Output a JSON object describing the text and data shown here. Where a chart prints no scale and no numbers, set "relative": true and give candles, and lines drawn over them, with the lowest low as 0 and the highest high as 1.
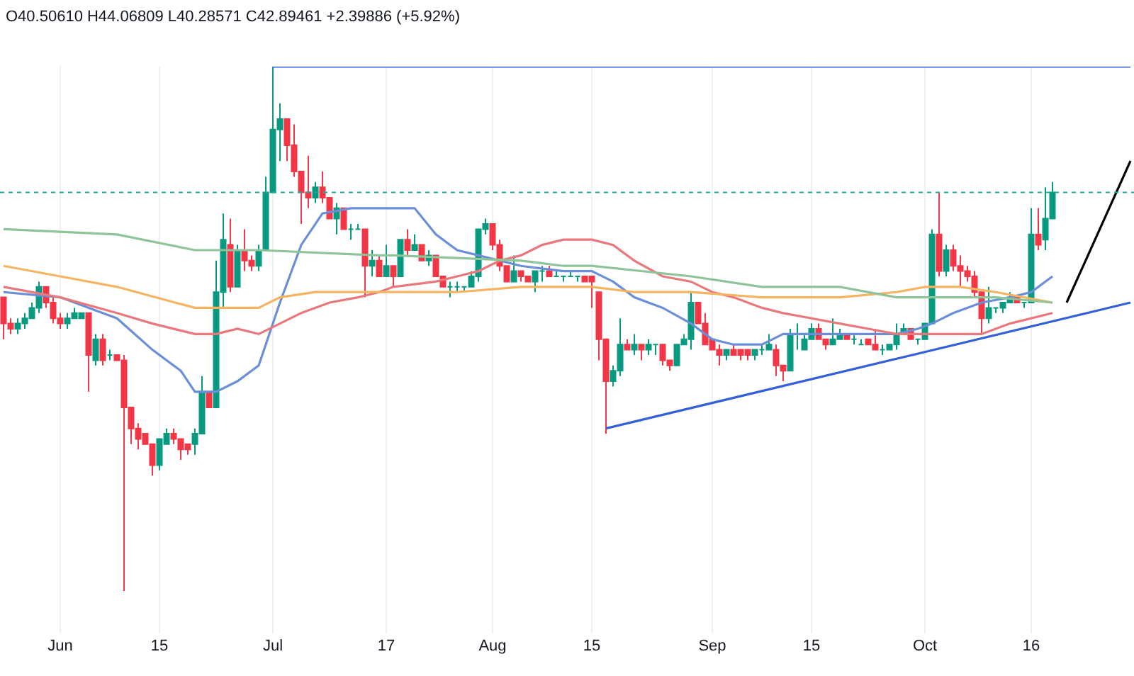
{
  "chart_data": {
    "type": "candlestick",
    "title": "O40.50610 H44.06809 L40.28571 C42.89461 +2.39886 (+5.92%)",
    "relative": true,
    "grid": "x",
    "categories": [
      null,
      null,
      null,
      null,
      null,
      null,
      null,
      null,
      "Jun",
      null,
      null,
      null,
      null,
      null,
      null,
      null,
      null,
      null,
      null,
      null,
      null,
      null,
      "15",
      null,
      null,
      null,
      null,
      null,
      null,
      null,
      null,
      null,
      null,
      null,
      null,
      null,
      null,
      null,
      "Jul",
      null,
      null,
      null,
      null,
      null,
      null,
      null,
      null,
      null,
      null,
      null,
      null,
      null,
      null,
      null,
      "17",
      null,
      null,
      null,
      null,
      null,
      null,
      null,
      null,
      null,
      null,
      null,
      null,
      null,
      null,
      "Aug",
      null,
      null,
      null,
      null,
      null,
      null,
      null,
      null,
      null,
      null,
      null,
      null,
      null,
      "15",
      null,
      null,
      null,
      null,
      null,
      null,
      null,
      null,
      null,
      null,
      null,
      null,
      null,
      null,
      null,
      null,
      "Sep",
      null,
      null,
      null,
      null,
      null,
      null,
      null,
      null,
      null,
      null,
      null,
      null,
      null,
      "15",
      null,
      null,
      null,
      null,
      null,
      null,
      null,
      null,
      null,
      null,
      null,
      null,
      null,
      null,
      null,
      "Oct",
      null,
      null,
      null,
      null,
      null,
      null,
      null,
      null,
      null,
      null,
      null,
      null,
      null,
      null,
      "16",
      null,
      null,
      null,
      null,
      null,
      null,
      null,
      null,
      null,
      null,
      null,
      null,
      null,
      null
    ],
    "ohlc": [
      [
        0.56,
        0.56,
        0.48,
        0.51
      ],
      [
        0.51,
        0.52,
        0.49,
        0.5
      ],
      [
        0.5,
        0.52,
        0.49,
        0.51
      ],
      [
        0.51,
        0.53,
        0.5,
        0.52
      ],
      [
        0.52,
        0.55,
        0.52,
        0.54
      ],
      [
        0.54,
        0.59,
        0.53,
        0.58
      ],
      [
        0.58,
        0.58,
        0.54,
        0.55
      ],
      [
        0.55,
        0.56,
        0.51,
        0.52
      ],
      [
        0.52,
        0.53,
        0.5,
        0.51
      ],
      [
        0.51,
        0.53,
        0.5,
        0.52
      ],
      [
        0.52,
        0.54,
        0.52,
        0.53
      ],
      [
        0.52,
        0.53,
        0.52,
        0.53
      ],
      [
        0.53,
        0.53,
        0.38,
        0.45
      ],
      [
        0.44,
        0.49,
        0.43,
        0.48
      ],
      [
        0.48,
        0.49,
        0.43,
        0.44
      ],
      [
        0.45,
        0.46,
        0.44,
        0.45
      ],
      [
        0.45,
        0.45,
        0.44,
        0.44
      ],
      [
        0.44,
        0.45,
        0.0,
        0.35
      ],
      [
        0.35,
        0.35,
        0.28,
        0.31
      ],
      [
        0.31,
        0.32,
        0.27,
        0.29
      ],
      [
        0.3,
        0.3,
        0.28,
        0.28
      ],
      [
        0.28,
        0.28,
        0.22,
        0.24
      ],
      [
        0.24,
        0.29,
        0.23,
        0.29
      ],
      [
        0.28,
        0.31,
        0.28,
        0.3
      ],
      [
        0.3,
        0.31,
        0.28,
        0.29
      ],
      [
        0.29,
        0.29,
        0.25,
        0.27
      ],
      [
        0.28,
        0.28,
        0.26,
        0.27
      ],
      [
        0.28,
        0.31,
        0.26,
        0.3
      ],
      [
        0.3,
        0.41,
        0.3,
        0.38
      ],
      [
        0.38,
        0.38,
        0.35,
        0.35
      ],
      [
        0.35,
        0.63,
        0.35,
        0.57
      ],
      [
        0.57,
        0.72,
        0.54,
        0.67
      ],
      [
        0.66,
        0.71,
        0.57,
        0.58
      ],
      [
        0.58,
        0.66,
        0.58,
        0.65
      ],
      [
        0.65,
        0.69,
        0.61,
        0.63
      ],
      [
        0.63,
        0.64,
        0.61,
        0.62
      ],
      [
        0.62,
        0.66,
        0.61,
        0.65
      ],
      [
        0.65,
        0.79,
        0.65,
        0.76
      ],
      [
        0.76,
        1.0,
        0.76,
        0.88
      ],
      [
        0.88,
        0.93,
        0.82,
        0.9
      ],
      [
        0.9,
        0.9,
        0.82,
        0.85
      ],
      [
        0.85,
        0.89,
        0.79,
        0.8
      ],
      [
        0.8,
        0.8,
        0.7,
        0.76
      ],
      [
        0.76,
        0.83,
        0.73,
        0.75
      ],
      [
        0.75,
        0.78,
        0.74,
        0.77
      ],
      [
        0.77,
        0.8,
        0.74,
        0.75
      ],
      [
        0.75,
        0.75,
        0.71,
        0.71
      ],
      [
        0.71,
        0.74,
        0.68,
        0.73
      ],
      [
        0.73,
        0.73,
        0.69,
        0.69
      ],
      [
        0.69,
        0.7,
        0.67,
        0.69
      ],
      [
        0.69,
        0.7,
        0.69,
        0.69
      ],
      [
        0.69,
        0.69,
        0.56,
        0.62
      ],
      [
        0.62,
        0.65,
        0.6,
        0.63
      ],
      [
        0.63,
        0.64,
        0.6,
        0.6
      ],
      [
        0.6,
        0.66,
        0.6,
        0.62
      ],
      [
        0.62,
        0.62,
        0.58,
        0.6
      ],
      [
        0.6,
        0.67,
        0.6,
        0.67
      ],
      [
        0.67,
        0.69,
        0.64,
        0.65
      ],
      [
        0.65,
        0.68,
        0.65,
        0.66
      ],
      [
        0.66,
        0.66,
        0.63,
        0.63
      ],
      [
        0.63,
        0.65,
        0.62,
        0.64
      ],
      [
        0.64,
        0.64,
        0.6,
        0.6
      ],
      [
        0.6,
        0.6,
        0.58,
        0.58
      ],
      [
        0.58,
        0.59,
        0.56,
        0.58
      ],
      [
        0.58,
        0.59,
        0.57,
        0.58
      ],
      [
        0.58,
        0.58,
        0.57,
        0.58
      ],
      [
        0.58,
        0.61,
        0.58,
        0.6
      ],
      [
        0.6,
        0.69,
        0.59,
        0.69
      ],
      [
        0.69,
        0.71,
        0.68,
        0.7
      ],
      [
        0.7,
        0.7,
        0.65,
        0.66
      ],
      [
        0.66,
        0.67,
        0.61,
        0.62
      ],
      [
        0.62,
        0.62,
        0.59,
        0.59
      ],
      [
        0.59,
        0.64,
        0.59,
        0.61
      ],
      [
        0.61,
        0.61,
        0.59,
        0.6
      ],
      [
        0.6,
        0.6,
        0.59,
        0.59
      ],
      [
        0.59,
        0.61,
        0.57,
        0.61
      ],
      [
        0.61,
        0.62,
        0.59,
        0.61
      ],
      [
        0.61,
        0.62,
        0.6,
        0.6
      ],
      [
        0.6,
        0.61,
        0.6,
        0.6
      ],
      [
        0.6,
        0.6,
        0.59,
        0.6
      ],
      [
        0.6,
        0.61,
        0.6,
        0.6
      ],
      [
        0.6,
        0.6,
        0.59,
        0.6
      ],
      [
        0.6,
        0.6,
        0.59,
        0.59
      ],
      [
        0.6,
        0.6,
        0.54,
        0.59
      ],
      [
        0.57,
        0.57,
        0.44,
        0.48
      ],
      [
        0.48,
        0.48,
        0.3,
        0.4
      ],
      [
        0.4,
        0.43,
        0.39,
        0.42
      ],
      [
        0.42,
        0.52,
        0.41,
        0.47
      ],
      [
        0.47,
        0.48,
        0.46,
        0.46
      ],
      [
        0.46,
        0.49,
        0.45,
        0.47
      ],
      [
        0.47,
        0.47,
        0.44,
        0.46
      ],
      [
        0.46,
        0.48,
        0.45,
        0.47
      ],
      [
        0.47,
        0.47,
        0.45,
        0.47
      ],
      [
        0.47,
        0.47,
        0.43,
        0.44
      ],
      [
        0.44,
        0.44,
        0.42,
        0.43
      ],
      [
        0.43,
        0.47,
        0.43,
        0.47
      ],
      [
        0.47,
        0.49,
        0.47,
        0.48
      ],
      [
        0.48,
        0.57,
        0.46,
        0.55
      ],
      [
        0.55,
        0.55,
        0.51,
        0.51
      ],
      [
        0.51,
        0.53,
        0.47,
        0.47
      ],
      [
        0.48,
        0.48,
        0.46,
        0.46
      ],
      [
        0.46,
        0.47,
        0.43,
        0.45
      ],
      [
        0.45,
        0.46,
        0.44,
        0.46
      ],
      [
        0.46,
        0.47,
        0.45,
        0.45
      ],
      [
        0.46,
        0.46,
        0.44,
        0.45
      ],
      [
        0.46,
        0.46,
        0.44,
        0.45
      ],
      [
        0.45,
        0.46,
        0.44,
        0.46
      ],
      [
        0.46,
        0.47,
        0.45,
        0.46
      ],
      [
        0.46,
        0.49,
        0.46,
        0.47
      ],
      [
        0.46,
        0.47,
        0.41,
        0.43
      ],
      [
        0.43,
        0.43,
        0.4,
        0.42
      ],
      [
        0.42,
        0.5,
        0.42,
        0.49
      ],
      [
        0.49,
        0.51,
        0.46,
        0.49
      ],
      [
        0.46,
        0.49,
        0.46,
        0.48
      ],
      [
        0.48,
        0.51,
        0.48,
        0.5
      ],
      [
        0.5,
        0.51,
        0.48,
        0.48
      ],
      [
        0.48,
        0.48,
        0.46,
        0.47
      ],
      [
        0.47,
        0.52,
        0.47,
        0.48
      ],
      [
        0.48,
        0.5,
        0.48,
        0.49
      ],
      [
        0.49,
        0.49,
        0.48,
        0.48
      ],
      [
        0.48,
        0.49,
        0.47,
        0.48
      ],
      [
        0.47,
        0.48,
        0.47,
        0.47
      ],
      [
        0.48,
        0.48,
        0.47,
        0.47
      ],
      [
        0.47,
        0.5,
        0.46,
        0.46
      ],
      [
        0.46,
        0.47,
        0.45,
        0.46
      ],
      [
        0.46,
        0.47,
        0.46,
        0.47
      ],
      [
        0.47,
        0.51,
        0.46,
        0.49
      ],
      [
        0.49,
        0.51,
        0.49,
        0.5
      ],
      [
        0.5,
        0.5,
        0.48,
        0.48
      ],
      [
        0.48,
        0.48,
        0.47,
        0.48
      ],
      [
        0.48,
        0.51,
        0.48,
        0.51
      ],
      [
        0.51,
        0.69,
        0.51,
        0.68
      ],
      [
        0.68,
        0.76,
        0.6,
        0.61
      ],
      [
        0.61,
        0.66,
        0.6,
        0.65
      ],
      [
        0.65,
        0.66,
        0.61,
        0.62
      ],
      [
        0.62,
        0.64,
        0.58,
        0.61
      ],
      [
        0.61,
        0.62,
        0.59,
        0.6
      ],
      [
        0.6,
        0.61,
        0.56,
        0.57
      ],
      [
        0.57,
        0.57,
        0.49,
        0.52
      ],
      [
        0.52,
        0.58,
        0.51,
        0.54
      ],
      [
        0.54,
        0.54,
        0.53,
        0.54
      ],
      [
        0.54,
        0.55,
        0.53,
        0.55
      ],
      [
        0.55,
        0.57,
        0.55,
        0.56
      ],
      [
        0.56,
        0.56,
        0.55,
        0.55
      ],
      [
        0.55,
        0.55,
        0.54,
        0.55
      ],
      [
        0.55,
        0.73,
        0.55,
        0.68
      ],
      [
        0.68,
        0.73,
        0.65,
        0.66
      ],
      [
        0.67,
        0.77,
        0.65,
        0.71
      ],
      [
        0.71,
        0.78,
        0.71,
        0.76
      ],
      null,
      null,
      null,
      null,
      null,
      null,
      null,
      null,
      null,
      null,
      null
    ],
    "series": [
      {
        "type": "line",
        "color": "#6a8fd8",
        "values": [
          0.57,
          null,
          null,
          null,
          null,
          null,
          null,
          null,
          0.56,
          null,
          null,
          null,
          null,
          null,
          null,
          null,
          0.52,
          null,
          null,
          null,
          null,
          0.46,
          null,
          null,
          null,
          0.42,
          null,
          0.38,
          null,
          null,
          0.38,
          null,
          null,
          0.4,
          null,
          null,
          0.43,
          null,
          null,
          0.55,
          null,
          null,
          0.66,
          null,
          null,
          0.72,
          null,
          null,
          null,
          0.73,
          null,
          null,
          null,
          0.73,
          null,
          0.73,
          null,
          null,
          0.73,
          null,
          null,
          0.68,
          null,
          null,
          0.65,
          null,
          null,
          0.64,
          null,
          null,
          0.63,
          null,
          null,
          0.62,
          null,
          null,
          null,
          null,
          null,
          0.61,
          null,
          null,
          null,
          0.61,
          null,
          null,
          0.59,
          null,
          null,
          0.56,
          null,
          null,
          null,
          0.54,
          null,
          null,
          null,
          0.51,
          null,
          null,
          0.48,
          null,
          null,
          0.47,
          null,
          null,
          null,
          0.47,
          null,
          null,
          0.49,
          null,
          null,
          null,
          0.49,
          null,
          null,
          null,
          0.49,
          null,
          null,
          null,
          0.49,
          null,
          null,
          null,
          0.49,
          null,
          null,
          0.5,
          null,
          0.51,
          null,
          null,
          0.53,
          null,
          null,
          null,
          0.55,
          null,
          null,
          null,
          0.56,
          null,
          null,
          0.57,
          null,
          null,
          0.6,
          null,
          null,
          null,
          null,
          null,
          null,
          null,
          null,
          null,
          null,
          null
        ]
      },
      {
        "type": "line",
        "color": "#e8787c",
        "values": [
          0.58,
          null,
          null,
          null,
          null,
          null,
          null,
          null,
          0.56,
          null,
          null,
          null,
          null,
          null,
          null,
          null,
          0.53,
          null,
          null,
          null,
          null,
          0.51,
          null,
          null,
          null,
          null,
          null,
          0.49,
          null,
          null,
          0.49,
          null,
          null,
          0.5,
          null,
          null,
          0.49,
          null,
          null,
          0.51,
          null,
          null,
          0.53,
          null,
          null,
          null,
          0.55,
          null,
          null,
          null,
          0.56,
          null,
          null,
          0.57,
          null,
          0.58,
          null,
          null,
          null,
          null,
          null,
          0.59,
          null,
          null,
          0.6,
          null,
          null,
          0.61,
          null,
          null,
          0.63,
          null,
          null,
          0.64,
          null,
          null,
          0.66,
          null,
          null,
          0.67,
          null,
          0.67,
          null,
          0.67,
          null,
          null,
          0.66,
          null,
          null,
          0.63,
          null,
          null,
          null,
          0.6,
          null,
          null,
          null,
          0.59,
          null,
          null,
          0.57,
          null,
          null,
          0.56,
          null,
          null,
          null,
          0.54,
          null,
          null,
          0.53,
          null,
          null,
          null,
          0.52,
          null,
          null,
          null,
          0.51,
          null,
          null,
          null,
          0.5,
          null,
          null,
          null,
          0.49,
          null,
          null,
          null,
          0.49,
          null,
          null,
          null,
          0.49,
          null,
          null,
          null,
          0.49,
          null,
          null,
          null,
          0.51,
          null,
          null,
          null,
          null,
          null,
          0.53,
          null,
          null,
          null,
          null,
          null,
          null,
          null,
          null,
          null,
          null,
          null
        ]
      },
      {
        "type": "line",
        "color": "#f5b461",
        "values": [
          0.62,
          null,
          null,
          null,
          null,
          null,
          null,
          null,
          0.6,
          null,
          null,
          null,
          null,
          null,
          null,
          null,
          0.58,
          null,
          null,
          null,
          null,
          null,
          null,
          null,
          null,
          null,
          null,
          0.54,
          null,
          null,
          0.54,
          null,
          null,
          null,
          null,
          null,
          0.54,
          null,
          null,
          0.56,
          null,
          null,
          null,
          null,
          0.57,
          null,
          null,
          null,
          null,
          null,
          null,
          null,
          null,
          0.57,
          null,
          null,
          null,
          null,
          null,
          null,
          null,
          null,
          null,
          null,
          0.57,
          null,
          null,
          null,
          null,
          null,
          null,
          null,
          null,
          0.58,
          null,
          null,
          null,
          null,
          null,
          0.58,
          null,
          null,
          null,
          0.58,
          null,
          null,
          null,
          null,
          null,
          0.57,
          null,
          null,
          null,
          null,
          null,
          null,
          null,
          0.57,
          null,
          null,
          null,
          null,
          null,
          null,
          null,
          null,
          null,
          0.56,
          null,
          null,
          0.56,
          null,
          null,
          null,
          null,
          null,
          null,
          null,
          0.56,
          null,
          null,
          null,
          null,
          null,
          null,
          null,
          0.57,
          null,
          null,
          null,
          0.58,
          null,
          null,
          null,
          null,
          0.58,
          null,
          null,
          null,
          null,
          0.57,
          null,
          null,
          null,
          null,
          null,
          null,
          null,
          0.55,
          null,
          null,
          null,
          null,
          null,
          null,
          null,
          null,
          null,
          null,
          null
        ]
      },
      {
        "type": "line",
        "color": "#8fc49a",
        "values": [
          0.69,
          null,
          null,
          null,
          null,
          null,
          null,
          null,
          null,
          null,
          null,
          null,
          null,
          null,
          null,
          null,
          0.68,
          null,
          null,
          null,
          null,
          null,
          null,
          null,
          null,
          null,
          null,
          0.65,
          null,
          null,
          null,
          null,
          null,
          null,
          null,
          null,
          0.65,
          null,
          null,
          null,
          null,
          null,
          null,
          null,
          null,
          null,
          null,
          null,
          null,
          null,
          null,
          null,
          null,
          0.64,
          null,
          0.64,
          null,
          null,
          null,
          null,
          null,
          null,
          null,
          null,
          null,
          null,
          null,
          null,
          null,
          null,
          null,
          null,
          null,
          0.63,
          null,
          null,
          null,
          null,
          null,
          0.62,
          null,
          null,
          null,
          0.62,
          null,
          null,
          null,
          null,
          null,
          null,
          null,
          null,
          null,
          null,
          null,
          null,
          null,
          0.6,
          null,
          null,
          null,
          null,
          null,
          null,
          null,
          null,
          null,
          0.58,
          null,
          null,
          0.58,
          null,
          null,
          null,
          null,
          null,
          null,
          null,
          0.58,
          null,
          null,
          null,
          null,
          null,
          null,
          null,
          0.56,
          null,
          null,
          null,
          null,
          null,
          null,
          null,
          null,
          0.56,
          null,
          null,
          null,
          null,
          0.56,
          null,
          null,
          null,
          null,
          null,
          null,
          null,
          0.55,
          null,
          null,
          null,
          null,
          null,
          null,
          null,
          null,
          null,
          null,
          null
        ]
      },
      {
        "type": "line",
        "color": "#3461d6",
        "values": [
          null,
          null,
          null,
          null,
          null,
          null,
          null,
          null,
          null,
          null,
          null,
          null,
          null,
          null,
          null,
          null,
          null,
          null,
          null,
          null,
          null,
          null,
          null,
          null,
          null,
          null,
          null,
          null,
          null,
          null,
          null,
          null,
          null,
          null,
          null,
          null,
          null,
          null,
          1.0,
          null,
          null,
          null,
          null,
          null,
          null,
          null,
          null,
          null,
          null,
          null,
          null,
          null,
          null,
          null,
          null,
          null,
          null,
          null,
          null,
          null,
          null,
          null,
          null,
          null,
          null,
          null,
          null,
          null,
          null,
          null,
          null,
          null,
          null,
          null,
          null,
          null,
          null,
          null,
          null,
          null,
          null,
          null,
          null,
          null,
          null,
          null,
          null,
          null,
          null,
          null,
          null,
          null,
          null,
          null,
          null,
          null,
          null,
          null,
          null,
          null,
          null,
          null,
          null,
          null,
          null,
          null,
          null,
          null,
          null,
          null,
          null,
          null,
          null,
          null,
          null,
          null,
          null,
          null,
          null,
          null,
          null,
          null,
          null,
          null,
          null,
          null,
          null,
          null,
          null,
          null,
          null,
          null,
          null,
          null,
          null,
          null,
          null,
          null,
          null,
          null,
          null,
          null,
          null,
          null,
          null,
          null,
          null,
          null,
          null,
          null,
          null,
          null,
          null,
          null,
          null,
          null,
          null,
          null,
          null,
          1.0
        ]
      },
      {
        "type": "line",
        "color": "#3461d6",
        "values": [
          null,
          null,
          null,
          null,
          null,
          null,
          null,
          null,
          null,
          null,
          null,
          null,
          null,
          null,
          null,
          null,
          null,
          null,
          null,
          null,
          null,
          null,
          null,
          null,
          null,
          null,
          null,
          null,
          null,
          null,
          null,
          null,
          null,
          null,
          null,
          null,
          null,
          null,
          null,
          null,
          null,
          null,
          null,
          null,
          null,
          null,
          null,
          null,
          null,
          null,
          null,
          null,
          null,
          null,
          null,
          null,
          null,
          null,
          null,
          null,
          null,
          null,
          null,
          null,
          null,
          null,
          null,
          null,
          null,
          null,
          null,
          null,
          null,
          null,
          null,
          null,
          null,
          null,
          null,
          null,
          null,
          null,
          null,
          null,
          null,
          0.31,
          null,
          null,
          null,
          null,
          null,
          null,
          null,
          null,
          null,
          null,
          null,
          null,
          null,
          null,
          null,
          null,
          null,
          null,
          null,
          null,
          null,
          null,
          null,
          null,
          null,
          null,
          null,
          null,
          null,
          null,
          null,
          null,
          null,
          null,
          null,
          null,
          null,
          null,
          null,
          null,
          null,
          null,
          null,
          null,
          null,
          null,
          null,
          null,
          null,
          null,
          null,
          null,
          null,
          null,
          null,
          null,
          null,
          null,
          null,
          null,
          null,
          null,
          null,
          null,
          null,
          null,
          null,
          null,
          null,
          null,
          null,
          null,
          null,
          0.55
        ]
      },
      {
        "type": "line",
        "color": "#000000",
        "values": [
          null,
          null,
          null,
          null,
          null,
          null,
          null,
          null,
          null,
          null,
          null,
          null,
          null,
          null,
          null,
          null,
          null,
          null,
          null,
          null,
          null,
          null,
          null,
          null,
          null,
          null,
          null,
          null,
          null,
          null,
          null,
          null,
          null,
          null,
          null,
          null,
          null,
          null,
          null,
          null,
          null,
          null,
          null,
          null,
          null,
          null,
          null,
          null,
          null,
          null,
          null,
          null,
          null,
          null,
          null,
          null,
          null,
          null,
          null,
          null,
          null,
          null,
          null,
          null,
          null,
          null,
          null,
          null,
          null,
          null,
          null,
          null,
          null,
          null,
          null,
          null,
          null,
          null,
          null,
          null,
          null,
          null,
          null,
          null,
          null,
          null,
          null,
          null,
          null,
          null,
          null,
          null,
          null,
          null,
          null,
          null,
          null,
          null,
          null,
          null,
          null,
          null,
          null,
          null,
          null,
          null,
          null,
          null,
          null,
          null,
          null,
          null,
          null,
          null,
          null,
          null,
          null,
          null,
          null,
          null,
          null,
          null,
          null,
          null,
          null,
          null,
          null,
          null,
          null,
          null,
          null,
          null,
          null,
          null,
          null,
          null,
          null,
          null,
          null,
          null,
          null,
          null,
          null,
          null,
          null,
          null,
          null,
          null,
          null,
          null,
          0.55,
          null,
          null,
          null,
          null,
          null,
          null,
          null,
          null,
          0.82
        ]
      }
    ],
    "ref_lines": [
      {
        "axis": "y",
        "value": 0.76,
        "color": "#26a69a",
        "line_style": "dotted"
      }
    ]
  }
}
